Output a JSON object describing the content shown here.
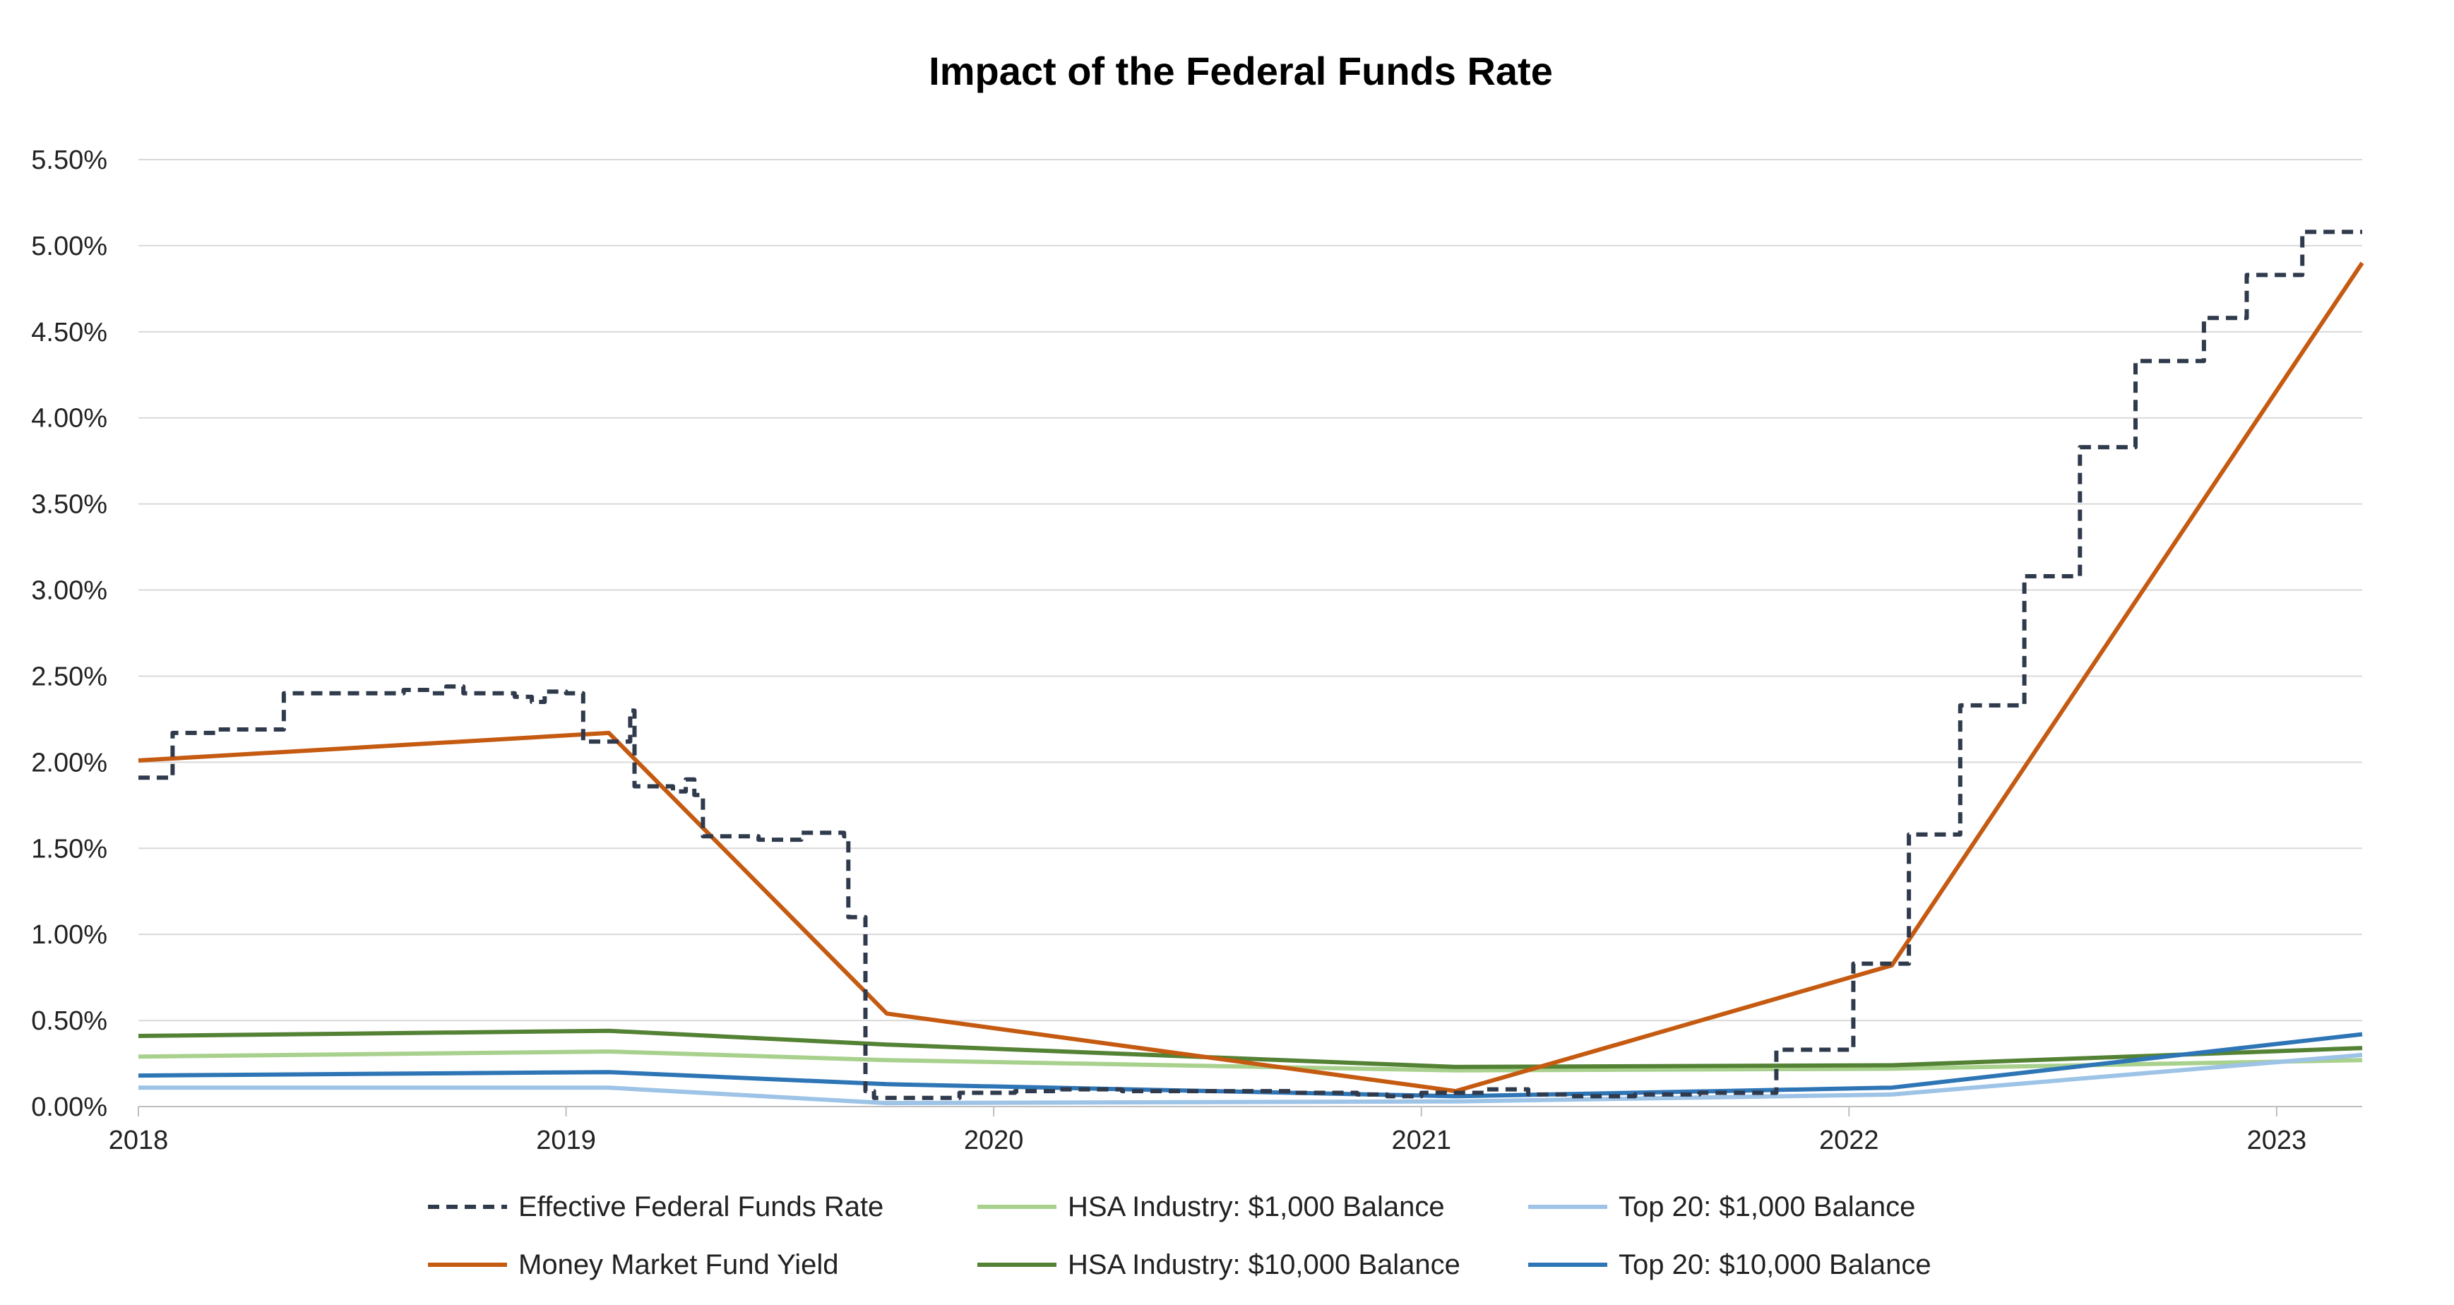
{
  "chart_data": {
    "type": "line",
    "title": "Impact of the Federal Funds Rate",
    "xlabel": "",
    "ylabel": "",
    "xlim": [
      2018,
      2023.2
    ],
    "ylim": [
      0,
      5.5
    ],
    "x_ticks": [
      {
        "value": 2018,
        "label": "2018"
      },
      {
        "value": 2019,
        "label": "2019"
      },
      {
        "value": 2020,
        "label": "2020"
      },
      {
        "value": 2021,
        "label": "2021"
      },
      {
        "value": 2022,
        "label": "2022"
      },
      {
        "value": 2023,
        "label": "2023"
      }
    ],
    "y_ticks": [
      {
        "value": 0,
        "label": "0.00%"
      },
      {
        "value": 0.5,
        "label": "0.50%"
      },
      {
        "value": 1.0,
        "label": "1.00%"
      },
      {
        "value": 1.5,
        "label": "1.50%"
      },
      {
        "value": 2.0,
        "label": "2.00%"
      },
      {
        "value": 2.5,
        "label": "2.50%"
      },
      {
        "value": 3.0,
        "label": "3.00%"
      },
      {
        "value": 3.5,
        "label": "3.50%"
      },
      {
        "value": 4.0,
        "label": "4.00%"
      },
      {
        "value": 4.5,
        "label": "4.50%"
      },
      {
        "value": 5.0,
        "label": "5.00%"
      },
      {
        "value": 5.5,
        "label": "5.50%"
      }
    ],
    "grid": true,
    "legend_position": "bottom",
    "series": [
      {
        "name": "Effective Federal Funds Rate",
        "color": "#2f3a4c",
        "style": "dashed",
        "step": true,
        "points": [
          [
            2018.0,
            1.91
          ],
          [
            2018.08,
            2.17
          ],
          [
            2018.18,
            2.19
          ],
          [
            2018.33,
            2.19
          ],
          [
            2018.34,
            2.4
          ],
          [
            2018.6,
            2.4
          ],
          [
            2018.62,
            2.42
          ],
          [
            2018.68,
            2.4
          ],
          [
            2018.72,
            2.44
          ],
          [
            2018.76,
            2.4
          ],
          [
            2018.88,
            2.38
          ],
          [
            2018.92,
            2.35
          ],
          [
            2018.95,
            2.41
          ],
          [
            2019.0,
            2.4
          ],
          [
            2019.03,
            2.4
          ],
          [
            2019.04,
            2.12
          ],
          [
            2019.14,
            2.12
          ],
          [
            2019.15,
            2.3
          ],
          [
            2019.16,
            1.86
          ],
          [
            2019.25,
            1.83
          ],
          [
            2019.28,
            1.9
          ],
          [
            2019.3,
            1.81
          ],
          [
            2019.32,
            1.57
          ],
          [
            2019.45,
            1.55
          ],
          [
            2019.52,
            1.55
          ],
          [
            2019.55,
            1.59
          ],
          [
            2019.65,
            1.57
          ],
          [
            2019.66,
            1.1
          ],
          [
            2019.69,
            1.1
          ],
          [
            2019.7,
            0.09
          ],
          [
            2019.72,
            0.05
          ],
          [
            2019.9,
            0.05
          ],
          [
            2019.92,
            0.08
          ],
          [
            2020.05,
            0.09
          ],
          [
            2020.15,
            0.1
          ],
          [
            2020.3,
            0.09
          ],
          [
            2020.45,
            0.09
          ],
          [
            2020.55,
            0.09
          ],
          [
            2020.7,
            0.08
          ],
          [
            2020.85,
            0.07
          ],
          [
            2020.92,
            0.06
          ],
          [
            2021.0,
            0.08
          ],
          [
            2021.15,
            0.1
          ],
          [
            2021.25,
            0.07
          ],
          [
            2021.35,
            0.06
          ],
          [
            2021.5,
            0.07
          ],
          [
            2021.65,
            0.08
          ],
          [
            2021.82,
            0.08
          ],
          [
            2021.83,
            0.33
          ],
          [
            2021.95,
            0.33
          ],
          [
            2022.0,
            0.33
          ],
          [
            2022.01,
            0.83
          ],
          [
            2022.13,
            0.83
          ],
          [
            2022.14,
            1.58
          ],
          [
            2022.25,
            1.58
          ],
          [
            2022.26,
            2.33
          ],
          [
            2022.4,
            2.33
          ],
          [
            2022.41,
            3.08
          ],
          [
            2022.53,
            3.08
          ],
          [
            2022.54,
            3.83
          ],
          [
            2022.66,
            3.83
          ],
          [
            2022.67,
            4.33
          ],
          [
            2022.82,
            4.33
          ],
          [
            2022.83,
            4.58
          ],
          [
            2022.92,
            4.58
          ],
          [
            2022.93,
            4.83
          ],
          [
            2023.05,
            4.83
          ],
          [
            2023.06,
            5.08
          ],
          [
            2023.2,
            5.08
          ]
        ]
      },
      {
        "name": "Money Market Fund Yield",
        "color": "#c55a11",
        "style": "solid",
        "step": false,
        "points": [
          [
            2018.0,
            2.01
          ],
          [
            2019.1,
            2.17
          ],
          [
            2019.75,
            0.54
          ],
          [
            2021.08,
            0.09
          ],
          [
            2022.1,
            0.82
          ],
          [
            2023.2,
            4.9
          ]
        ]
      },
      {
        "name": "HSA Industry: $1,000 Balance",
        "color": "#a9d18e",
        "style": "solid",
        "step": false,
        "points": [
          [
            2018.0,
            0.29
          ],
          [
            2019.1,
            0.32
          ],
          [
            2019.75,
            0.27
          ],
          [
            2021.08,
            0.21
          ],
          [
            2022.1,
            0.22
          ],
          [
            2023.2,
            0.27
          ]
        ]
      },
      {
        "name": "HSA Industry: $10,000 Balance",
        "color": "#548235",
        "style": "solid",
        "step": false,
        "points": [
          [
            2018.0,
            0.41
          ],
          [
            2019.1,
            0.44
          ],
          [
            2019.75,
            0.36
          ],
          [
            2021.08,
            0.23
          ],
          [
            2022.1,
            0.24
          ],
          [
            2023.2,
            0.34
          ]
        ]
      },
      {
        "name": "Top 20: $1,000 Balance",
        "color": "#9dc3e6",
        "style": "solid",
        "step": false,
        "points": [
          [
            2018.0,
            0.11
          ],
          [
            2019.1,
            0.11
          ],
          [
            2019.75,
            0.02
          ],
          [
            2021.08,
            0.03
          ],
          [
            2022.1,
            0.07
          ],
          [
            2023.2,
            0.3
          ]
        ]
      },
      {
        "name": "Top 20: $10,000 Balance",
        "color": "#2e75b6",
        "style": "solid",
        "step": false,
        "points": [
          [
            2018.0,
            0.18
          ],
          [
            2019.1,
            0.2
          ],
          [
            2019.75,
            0.13
          ],
          [
            2021.08,
            0.06
          ],
          [
            2022.1,
            0.11
          ],
          [
            2023.2,
            0.42
          ]
        ]
      }
    ]
  }
}
